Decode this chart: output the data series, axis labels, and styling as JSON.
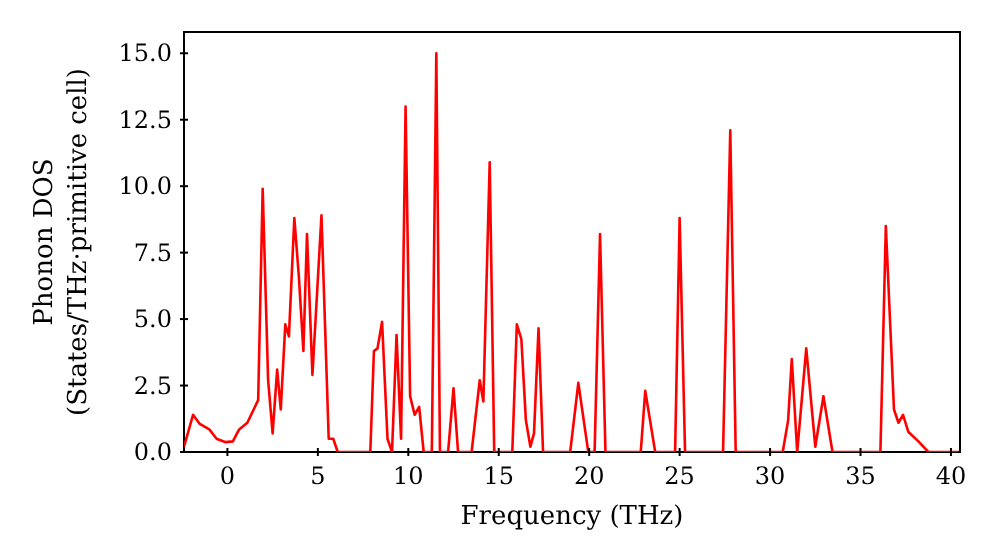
{
  "chart_data": {
    "type": "line",
    "xlabel": "Frequency (THz)",
    "ylabel": "Phonon DOS\n(States/THz·primitive cell)",
    "x": [
      -2.4,
      -1.9,
      -1.55,
      -1.0,
      -0.6,
      -0.1,
      0.3,
      0.65,
      1.1,
      1.7,
      1.95,
      2.25,
      2.5,
      2.75,
      2.95,
      3.2,
      3.4,
      3.7,
      3.95,
      4.2,
      4.4,
      4.7,
      5.2,
      5.6,
      5.85,
      6.1,
      7.9,
      8.1,
      8.3,
      8.55,
      8.85,
      9.1,
      9.35,
      9.6,
      9.85,
      10.1,
      10.35,
      10.6,
      10.85,
      11.3,
      11.55,
      11.75,
      12.2,
      12.5,
      12.75,
      13.5,
      13.95,
      14.15,
      14.5,
      14.75,
      15.75,
      16.0,
      16.25,
      16.5,
      16.75,
      16.95,
      17.2,
      17.45,
      18.95,
      19.4,
      19.95,
      20.3,
      20.6,
      20.9,
      22.85,
      23.1,
      23.65,
      24.75,
      25.0,
      25.3,
      27.4,
      27.8,
      28.1,
      30.7,
      31.0,
      31.2,
      31.5,
      32.0,
      32.5,
      32.95,
      33.45,
      36.1,
      36.4,
      36.85,
      37.1,
      37.35,
      37.65,
      38.2,
      38.75,
      40.4
    ],
    "series": [
      {
        "color": "#ff0000",
        "values": [
          0.2,
          1.4,
          1.07,
          0.85,
          0.5,
          0.37,
          0.4,
          0.85,
          1.1,
          1.95,
          9.9,
          2.7,
          0.7,
          3.1,
          1.6,
          4.8,
          4.35,
          8.8,
          6.6,
          3.8,
          8.2,
          2.9,
          8.9,
          0.5,
          0.5,
          0,
          0,
          3.8,
          3.9,
          4.9,
          0.5,
          0,
          4.4,
          0.5,
          13.0,
          2.1,
          1.4,
          1.7,
          0,
          0,
          15.0,
          0,
          0,
          2.4,
          0,
          0,
          2.7,
          1.9,
          10.9,
          0,
          0,
          4.8,
          4.25,
          1.2,
          0.2,
          0.7,
          4.65,
          0,
          0,
          2.6,
          0,
          0,
          8.2,
          0,
          0,
          2.3,
          0,
          0,
          8.8,
          0,
          0,
          12.1,
          0,
          0,
          1.2,
          3.5,
          0,
          3.9,
          0.2,
          2.1,
          0,
          0,
          8.5,
          1.6,
          1.1,
          1.4,
          0.75,
          0.4,
          0,
          0
        ]
      }
    ],
    "xlim": [
      -2.4,
      40.5
    ],
    "xticks": [
      0,
      5,
      10,
      15,
      20,
      25,
      30,
      35,
      40
    ],
    "ylim": [
      0,
      15.8
    ],
    "yticks": [
      {
        "value": 0,
        "label": "0.0"
      },
      {
        "value": 2.5,
        "label": "2.5"
      },
      {
        "value": 5,
        "label": "5.0"
      },
      {
        "value": 7.5,
        "label": "7.5"
      },
      {
        "value": 10,
        "label": "10.0"
      },
      {
        "value": 12.5,
        "label": "12.5"
      },
      {
        "value": 15,
        "label": "15.0"
      }
    ],
    "grid": false,
    "legend": false,
    "marker": "none",
    "line_style": "solid"
  }
}
